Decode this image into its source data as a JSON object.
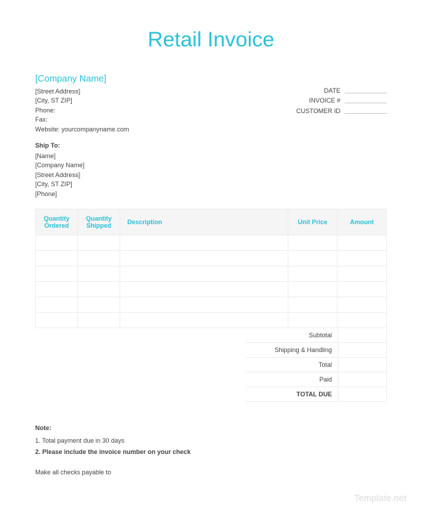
{
  "colors": {
    "accent": "#29c1d6",
    "text": "#444444",
    "header_bg": "#f5f5f5",
    "border": "#eeeeee",
    "watermark": "#dcdcdc",
    "background": "#ffffff"
  },
  "title": "Retail Invoice",
  "company": {
    "name": "[Company Name]",
    "street": "[Street Address]",
    "city": "[City, ST  ZIP]",
    "phone_label": "Phone:",
    "fax_label": "Fax:",
    "website_label": "Website:",
    "website": "yourcompanyname.com"
  },
  "meta": {
    "date_label": "DATE",
    "invoice_label": "INVOICE #",
    "customer_label": "CUSTOMER ID"
  },
  "ship_to": {
    "title": "Ship To:",
    "name": "[Name]",
    "company": "[Company Name]",
    "street": "[Street Address]",
    "city": "[City, ST  ZIP]",
    "phone": "[Phone]"
  },
  "table": {
    "columns": [
      "Quantity Ordered",
      "Quantity Shipped",
      "Description",
      "Unit Price",
      "Amount"
    ],
    "row_count": 6
  },
  "totals": {
    "rows": [
      {
        "label": "Subtotal",
        "bold": false
      },
      {
        "label": "Shipping & Handling",
        "bold": false
      },
      {
        "label": "Total",
        "bold": false
      },
      {
        "label": "Paid",
        "bold": false
      },
      {
        "label": "TOTAL DUE",
        "bold": true
      }
    ]
  },
  "notes": {
    "title": "Note:",
    "line1": "1. Total payment due in 30 days",
    "line2": "2. Please include the invoice number on your check"
  },
  "payable": "Make all checks payable to",
  "watermark": "Template.net"
}
